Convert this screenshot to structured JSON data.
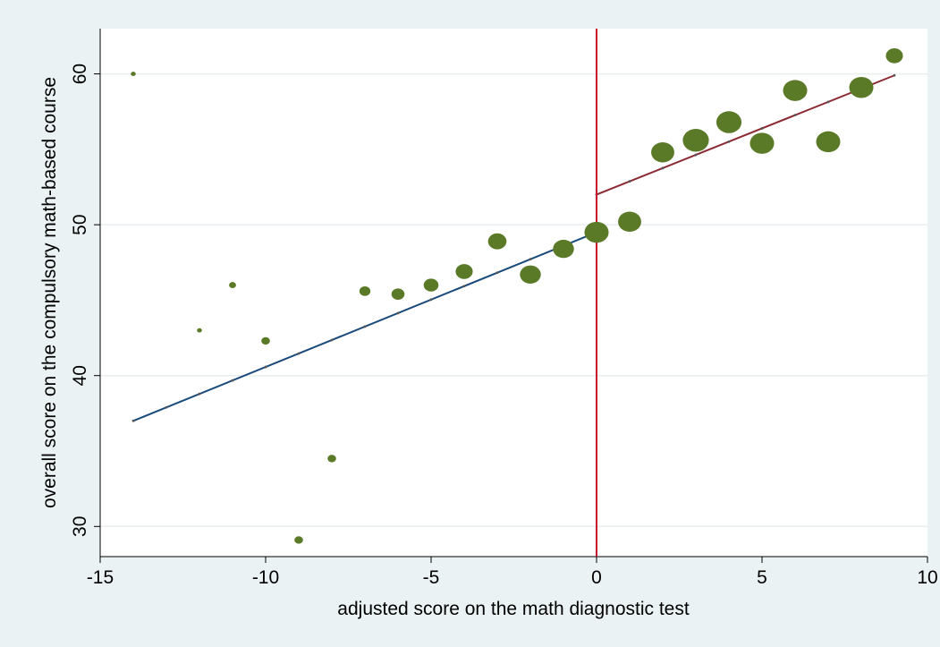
{
  "chart_data": {
    "type": "scatter",
    "title": "",
    "xlabel": "adjusted score on the math diagnostic test",
    "ylabel": "overall score on the compulsory math-based course",
    "xlim": [
      -15,
      10
    ],
    "ylim": [
      28,
      63
    ],
    "x_ticks": [
      -15,
      -10,
      -5,
      0,
      5,
      10
    ],
    "y_ticks": [
      30,
      40,
      50,
      60
    ],
    "grid": true,
    "cutoff": 0,
    "points": [
      {
        "x": -14,
        "y": 60.0,
        "weight": 1
      },
      {
        "x": -12,
        "y": 43.0,
        "weight": 1
      },
      {
        "x": -11,
        "y": 46.0,
        "weight": 2
      },
      {
        "x": -10,
        "y": 42.3,
        "weight": 3
      },
      {
        "x": -9,
        "y": 29.1,
        "weight": 3
      },
      {
        "x": -8,
        "y": 34.5,
        "weight": 3
      },
      {
        "x": -7,
        "y": 45.6,
        "weight": 5
      },
      {
        "x": -6,
        "y": 45.4,
        "weight": 7
      },
      {
        "x": -5,
        "y": 46.0,
        "weight": 9
      },
      {
        "x": -4,
        "y": 46.9,
        "weight": 12
      },
      {
        "x": -3,
        "y": 48.9,
        "weight": 14
      },
      {
        "x": -2,
        "y": 46.7,
        "weight": 18
      },
      {
        "x": -1,
        "y": 48.4,
        "weight": 18
      },
      {
        "x": 0,
        "y": 49.5,
        "weight": 24
      },
      {
        "x": 1,
        "y": 50.2,
        "weight": 22
      },
      {
        "x": 2,
        "y": 54.8,
        "weight": 22
      },
      {
        "x": 3,
        "y": 55.6,
        "weight": 28
      },
      {
        "x": 4,
        "y": 56.8,
        "weight": 26
      },
      {
        "x": 5,
        "y": 55.4,
        "weight": 24
      },
      {
        "x": 6,
        "y": 58.9,
        "weight": 24
      },
      {
        "x": 7,
        "y": 55.5,
        "weight": 24
      },
      {
        "x": 8,
        "y": 59.1,
        "weight": 24
      },
      {
        "x": 9,
        "y": 61.2,
        "weight": 12
      }
    ],
    "fit_lines": [
      {
        "x": [
          -14,
          0
        ],
        "y": [
          37.0,
          49.5
        ],
        "color": "#1a4a7a"
      },
      {
        "x": [
          0,
          9
        ],
        "y": [
          52.0,
          59.9
        ],
        "color": "#8b2a33"
      }
    ],
    "colors": {
      "background": "#eaf2f3",
      "plot_background": "#ffffff",
      "grid": "#e8eef0",
      "marker": "#5a7a28",
      "cutoff_line": "#c8102e",
      "axis": "#000000"
    }
  }
}
